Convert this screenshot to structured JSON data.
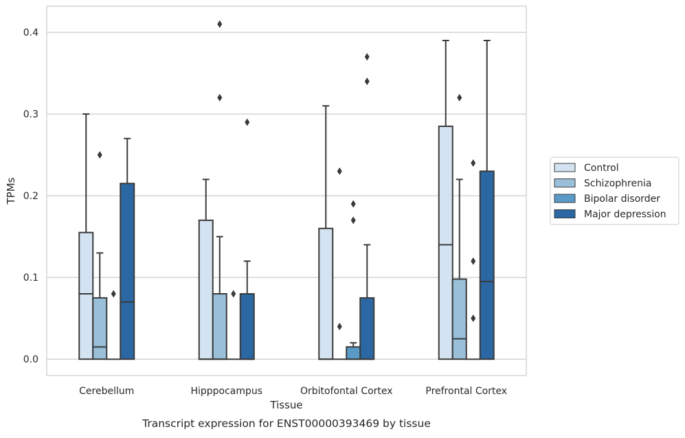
{
  "chart_data": {
    "type": "box",
    "xlabel": "Tissue",
    "ylabel": "TPMs",
    "caption": "Transcript expression for ENST00000393469 by tissue",
    "ylim": [
      -0.02,
      0.432
    ],
    "yticks": [
      "0.0",
      "0.1",
      "0.2",
      "0.3",
      "0.4"
    ],
    "ytick_values": [
      0.0,
      0.1,
      0.2,
      0.3,
      0.4
    ],
    "grid": "horizontal",
    "legend_position": "right",
    "categories": [
      "Cerebellum",
      "Hipppocampus",
      "Orbitofontal Cortex",
      "Prefrontal Cortex"
    ],
    "series": [
      {
        "name": "Control",
        "color": "#d3e3f2",
        "boxes": [
          {
            "q1": 0.0,
            "median": 0.08,
            "q3": 0.155,
            "whisker_low": 0.0,
            "whisker_high": 0.3,
            "outliers": []
          },
          {
            "q1": 0.0,
            "median": 0.0,
            "q3": 0.17,
            "whisker_low": 0.0,
            "whisker_high": 0.22,
            "outliers": []
          },
          {
            "q1": 0.0,
            "median": 0.0,
            "q3": 0.16,
            "whisker_low": 0.0,
            "whisker_high": 0.31,
            "outliers": []
          },
          {
            "q1": 0.0,
            "median": 0.14,
            "q3": 0.285,
            "whisker_low": 0.0,
            "whisker_high": 0.39,
            "outliers": []
          }
        ]
      },
      {
        "name": "Schizophrenia",
        "color": "#9ac0d9",
        "boxes": [
          {
            "q1": 0.0,
            "median": 0.015,
            "q3": 0.075,
            "whisker_low": 0.0,
            "whisker_high": 0.13,
            "outliers": [
              0.25
            ]
          },
          {
            "q1": 0.0,
            "median": 0.0,
            "q3": 0.08,
            "whisker_low": 0.0,
            "whisker_high": 0.15,
            "outliers": [
              0.32,
              0.41
            ]
          },
          {
            "q1": 0.0,
            "median": 0.0,
            "q3": 0.0,
            "whisker_low": 0.0,
            "whisker_high": 0.0,
            "outliers": [
              0.04,
              0.23
            ]
          },
          {
            "q1": 0.0,
            "median": 0.025,
            "q3": 0.098,
            "whisker_low": 0.0,
            "whisker_high": 0.22,
            "outliers": [
              0.32
            ]
          }
        ]
      },
      {
        "name": "Bipolar disorder",
        "color": "#5a9ac7",
        "boxes": [
          {
            "q1": 0.0,
            "median": 0.0,
            "q3": 0.0,
            "whisker_low": 0.0,
            "whisker_high": 0.0,
            "outliers": [
              0.08
            ]
          },
          {
            "q1": 0.0,
            "median": 0.0,
            "q3": 0.0,
            "whisker_low": 0.0,
            "whisker_high": 0.0,
            "outliers": [
              0.08
            ]
          },
          {
            "q1": 0.0,
            "median": 0.0,
            "q3": 0.015,
            "whisker_low": 0.0,
            "whisker_high": 0.02,
            "outliers": [
              0.17,
              0.19
            ]
          },
          {
            "q1": 0.0,
            "median": 0.0,
            "q3": 0.0,
            "whisker_low": 0.0,
            "whisker_high": 0.0,
            "outliers": [
              0.05,
              0.12,
              0.24
            ]
          }
        ]
      },
      {
        "name": "Major depression",
        "color": "#2a67a3",
        "boxes": [
          {
            "q1": 0.0,
            "median": 0.07,
            "q3": 0.215,
            "whisker_low": 0.0,
            "whisker_high": 0.27,
            "outliers": []
          },
          {
            "q1": 0.0,
            "median": 0.0,
            "q3": 0.08,
            "whisker_low": 0.0,
            "whisker_high": 0.12,
            "outliers": [
              0.29
            ]
          },
          {
            "q1": 0.0,
            "median": 0.0,
            "q3": 0.075,
            "whisker_low": 0.0,
            "whisker_high": 0.14,
            "outliers": [
              0.34,
              0.37
            ]
          },
          {
            "q1": 0.0,
            "median": 0.095,
            "q3": 0.23,
            "whisker_low": 0.0,
            "whisker_high": 0.39,
            "outliers": []
          }
        ]
      }
    ]
  }
}
